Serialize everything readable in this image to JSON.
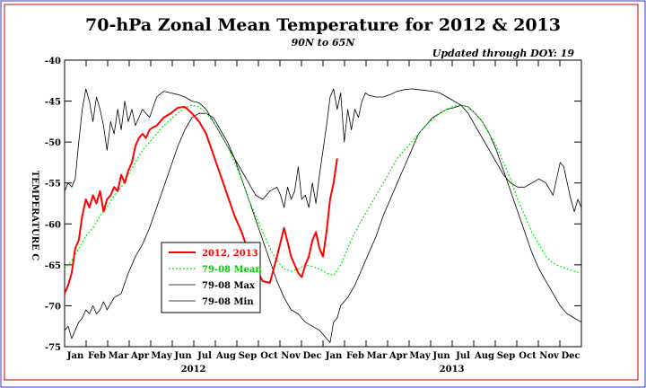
{
  "chart_data": {
    "type": "line",
    "title": "70-hPa Zonal Mean Temperature for 2012 & 2013",
    "subtitle": "90N to 65N",
    "annotation": "Updated through DOY:  19",
    "ylabel": "TEMPERATURE C",
    "ylim": [
      -75,
      -40
    ],
    "yticks": [
      -40,
      -45,
      -50,
      -55,
      -60,
      -65,
      -70,
      -75
    ],
    "xlim": [
      0,
      730
    ],
    "month_labels": [
      "Jan",
      "Feb",
      "Mar",
      "Apr",
      "May",
      "Jun",
      "Jul",
      "Aug",
      "Sep",
      "Oct",
      "Nov",
      "Dec",
      "Jan",
      "Feb",
      "Mar",
      "Apr",
      "May",
      "Jun",
      "Jul",
      "Aug",
      "Sep",
      "Oct",
      "Nov",
      "Dec"
    ],
    "year_labels": [
      "2012",
      "2013"
    ],
    "legend_position": "lower-left",
    "series": [
      {
        "name": "2012, 2013",
        "color": "#ff0000",
        "style": "solid-thick",
        "x": [
          0,
          5,
          10,
          15,
          20,
          25,
          30,
          35,
          40,
          45,
          50,
          55,
          60,
          65,
          70,
          75,
          80,
          85,
          90,
          95,
          100,
          105,
          110,
          115,
          120,
          125,
          130,
          140,
          150,
          160,
          170,
          180,
          190,
          200,
          210,
          220,
          230,
          240,
          250,
          260,
          270,
          280,
          290,
          300,
          310,
          320,
          330,
          335,
          340,
          345,
          350,
          355,
          360,
          365,
          370,
          375,
          380,
          385
        ],
        "y": [
          -68.5,
          -67.5,
          -66,
          -63,
          -62,
          -59,
          -57,
          -58,
          -56.5,
          -57.5,
          -56,
          -58.5,
          -57,
          -56.5,
          -55.5,
          -56,
          -54,
          -55,
          -53.5,
          -52.5,
          -50.5,
          -49.5,
          -49,
          -49.5,
          -48.5,
          -48.2,
          -48,
          -47,
          -46.5,
          -45.8,
          -45.7,
          -46.5,
          -47.5,
          -49,
          -51.5,
          -54,
          -56.5,
          -59,
          -61,
          -63.5,
          -65.5,
          -67,
          -67.2,
          -64,
          -60.5,
          -64,
          -66,
          -66.5,
          -65,
          -64,
          -62,
          -61,
          -63,
          -64,
          -61,
          -57,
          -55,
          -52
        ]
      },
      {
        "name": "79-08 Mean",
        "color": "#00ee00",
        "style": "dotted",
        "x": [
          0,
          10,
          20,
          30,
          40,
          50,
          60,
          70,
          80,
          90,
          100,
          110,
          120,
          130,
          140,
          150,
          160,
          170,
          180,
          190,
          200,
          210,
          220,
          230,
          240,
          250,
          260,
          270,
          280,
          290,
          300,
          310,
          320,
          330,
          340,
          350,
          360,
          370,
          380,
          390,
          400,
          410,
          420,
          430,
          440,
          450,
          460,
          470,
          480,
          490,
          500,
          510,
          520,
          530,
          540,
          550,
          560,
          570,
          580,
          590,
          600,
          610,
          620,
          630,
          640,
          650,
          660,
          670,
          680,
          690,
          700,
          710,
          720,
          730
        ],
        "y": [
          -65.5,
          -64.5,
          -63,
          -61.5,
          -60.5,
          -59,
          -58,
          -56.5,
          -55.5,
          -54,
          -52.5,
          -51,
          -50,
          -49,
          -48,
          -47.2,
          -46.5,
          -45.8,
          -45.5,
          -45.7,
          -46.5,
          -47.5,
          -49,
          -50.5,
          -52.5,
          -54.5,
          -57,
          -59,
          -61,
          -63,
          -64.5,
          -65.5,
          -65.8,
          -65.5,
          -65,
          -65.2,
          -65.5,
          -66,
          -66.3,
          -65,
          -63,
          -61,
          -59.5,
          -58,
          -56.5,
          -55,
          -53.5,
          -52,
          -51,
          -50,
          -49,
          -48,
          -47.2,
          -46.5,
          -46,
          -45.6,
          -45.5,
          -45.7,
          -46.5,
          -47.5,
          -49,
          -50.5,
          -52.5,
          -54.5,
          -57,
          -59,
          -61,
          -62.5,
          -64,
          -64.8,
          -65.2,
          -65.5,
          -65.8,
          -66
        ]
      },
      {
        "name": "79-08 Max",
        "color": "#000000",
        "style": "thin",
        "x": [
          0,
          5,
          10,
          15,
          20,
          25,
          30,
          35,
          40,
          45,
          50,
          55,
          60,
          65,
          70,
          75,
          80,
          85,
          90,
          95,
          100,
          110,
          120,
          130,
          140,
          150,
          160,
          170,
          180,
          190,
          200,
          210,
          220,
          230,
          240,
          250,
          260,
          270,
          280,
          290,
          300,
          305,
          310,
          315,
          320,
          325,
          330,
          335,
          340,
          345,
          350,
          355,
          360,
          365,
          370,
          375,
          380,
          385,
          390,
          395,
          400,
          405,
          410,
          415,
          420,
          425,
          430,
          440,
          450,
          460,
          470,
          480,
          490,
          500,
          510,
          520,
          530,
          540,
          550,
          560,
          570,
          580,
          590,
          600,
          610,
          620,
          630,
          640,
          650,
          660,
          670,
          680,
          690,
          700,
          705,
          710,
          715,
          720,
          725,
          730
        ],
        "y": [
          -56,
          -55,
          -55.5,
          -54.5,
          -50,
          -46,
          -43.5,
          -45,
          -47.5,
          -44.5,
          -46,
          -48,
          -51,
          -47.5,
          -49,
          -46,
          -48.5,
          -45,
          -47.5,
          -46,
          -48,
          -46,
          -47,
          -44.5,
          -43.8,
          -44,
          -44.2,
          -44.5,
          -45,
          -45.2,
          -46,
          -47.5,
          -49,
          -50.5,
          -52,
          -53.5,
          -55,
          -56.5,
          -57,
          -56,
          -55.5,
          -56.5,
          -58,
          -55.5,
          -57,
          -56,
          -53,
          -57,
          -56.5,
          -58,
          -55,
          -57.5,
          -54,
          -51,
          -48,
          -44.5,
          -43.5,
          -46,
          -44,
          -50,
          -46,
          -48.5,
          -46,
          -47,
          -45,
          -44,
          -44.3,
          -44.5,
          -44.5,
          -44.2,
          -43.8,
          -43.6,
          -43.5,
          -43.6,
          -43.7,
          -43.8,
          -44,
          -44.5,
          -45,
          -45.5,
          -46.5,
          -48,
          -49.5,
          -51,
          -52.5,
          -54,
          -55,
          -55.5,
          -55.5,
          -55,
          -54.5,
          -55,
          -56.5,
          -52.5,
          -53,
          -55,
          -57,
          -58.5,
          -57,
          -58
        ]
      },
      {
        "name": "79-08 Min",
        "color": "#000000",
        "style": "thin",
        "x": [
          0,
          5,
          10,
          15,
          20,
          25,
          30,
          35,
          40,
          45,
          50,
          55,
          60,
          70,
          80,
          90,
          100,
          110,
          120,
          130,
          140,
          150,
          160,
          170,
          180,
          190,
          200,
          210,
          220,
          230,
          240,
          250,
          260,
          270,
          280,
          290,
          300,
          310,
          320,
          330,
          340,
          350,
          360,
          365,
          370,
          375,
          380,
          385,
          390,
          400,
          410,
          420,
          430,
          440,
          450,
          460,
          470,
          480,
          490,
          500,
          510,
          520,
          530,
          540,
          550,
          560,
          570,
          580,
          590,
          600,
          610,
          620,
          630,
          640,
          650,
          660,
          670,
          680,
          690,
          700,
          710,
          720,
          730
        ],
        "y": [
          -73,
          -72.5,
          -74,
          -73,
          -72,
          -71.5,
          -70.5,
          -71,
          -70,
          -71,
          -70.5,
          -69.5,
          -70.5,
          -69,
          -68.5,
          -66,
          -64,
          -62.5,
          -60.5,
          -58,
          -55.5,
          -53,
          -50.5,
          -48.5,
          -47,
          -46.5,
          -46.5,
          -47,
          -48.5,
          -50,
          -52,
          -54.5,
          -57,
          -59.5,
          -62,
          -64.5,
          -67,
          -69,
          -70.5,
          -71,
          -72,
          -72.5,
          -73,
          -73.5,
          -74,
          -74.5,
          -72,
          -71.5,
          -70,
          -69,
          -67.5,
          -65.5,
          -63.5,
          -61.5,
          -59,
          -57,
          -55,
          -53,
          -51,
          -49,
          -48,
          -47,
          -46.5,
          -46,
          -45.8,
          -45.5,
          -45.7,
          -46.5,
          -47.5,
          -49,
          -51,
          -53.5,
          -56,
          -58.5,
          -61,
          -63.5,
          -65.5,
          -67,
          -68.5,
          -70,
          -71,
          -71.5,
          -72
        ]
      }
    ]
  }
}
